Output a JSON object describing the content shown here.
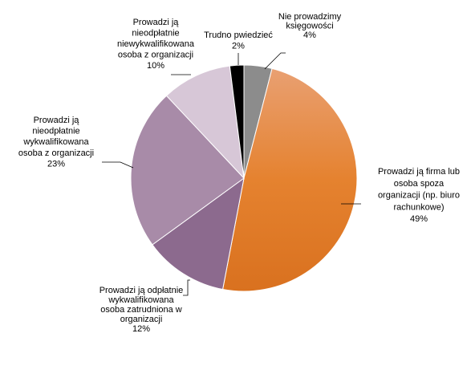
{
  "chart_data": {
    "type": "pie",
    "title": "",
    "slices": [
      {
        "label_lines": [
          "Nie prowadzimy",
          "księgowości"
        ],
        "value": 4,
        "value_label": "4%",
        "color": "#8c8c8c"
      },
      {
        "label_lines": [
          "Prowadzi ją firma lub",
          "osoba spoza",
          "organizacji (np. biuro",
          "rachunkowe)"
        ],
        "value": 49,
        "value_label": "49%",
        "color": "#e57e2c"
      },
      {
        "label_lines": [
          "Prowadzi ją odpłatnie",
          "wykwalifikowana",
          "osoba zatrudniona w",
          "organizacji"
        ],
        "value": 12,
        "value_label": "12%",
        "color": "#8c6a8e"
      },
      {
        "label_lines": [
          "Prowadzi ją",
          "nieodpłatnie",
          "wykwalifikowana",
          "osoba z organizacji"
        ],
        "value": 23,
        "value_label": "23%",
        "color": "#a88ba8"
      },
      {
        "label_lines": [
          "Prowadzi ją",
          "nieodpłatnie",
          "niewykwalifikowana",
          "osoba z organizacji"
        ],
        "value": 10,
        "value_label": "10%",
        "color": "#d7c7d7"
      },
      {
        "label_lines": [
          "Trudno pwiedzieć"
        ],
        "value": 2,
        "value_label": "2%",
        "color": "#000000"
      }
    ]
  }
}
